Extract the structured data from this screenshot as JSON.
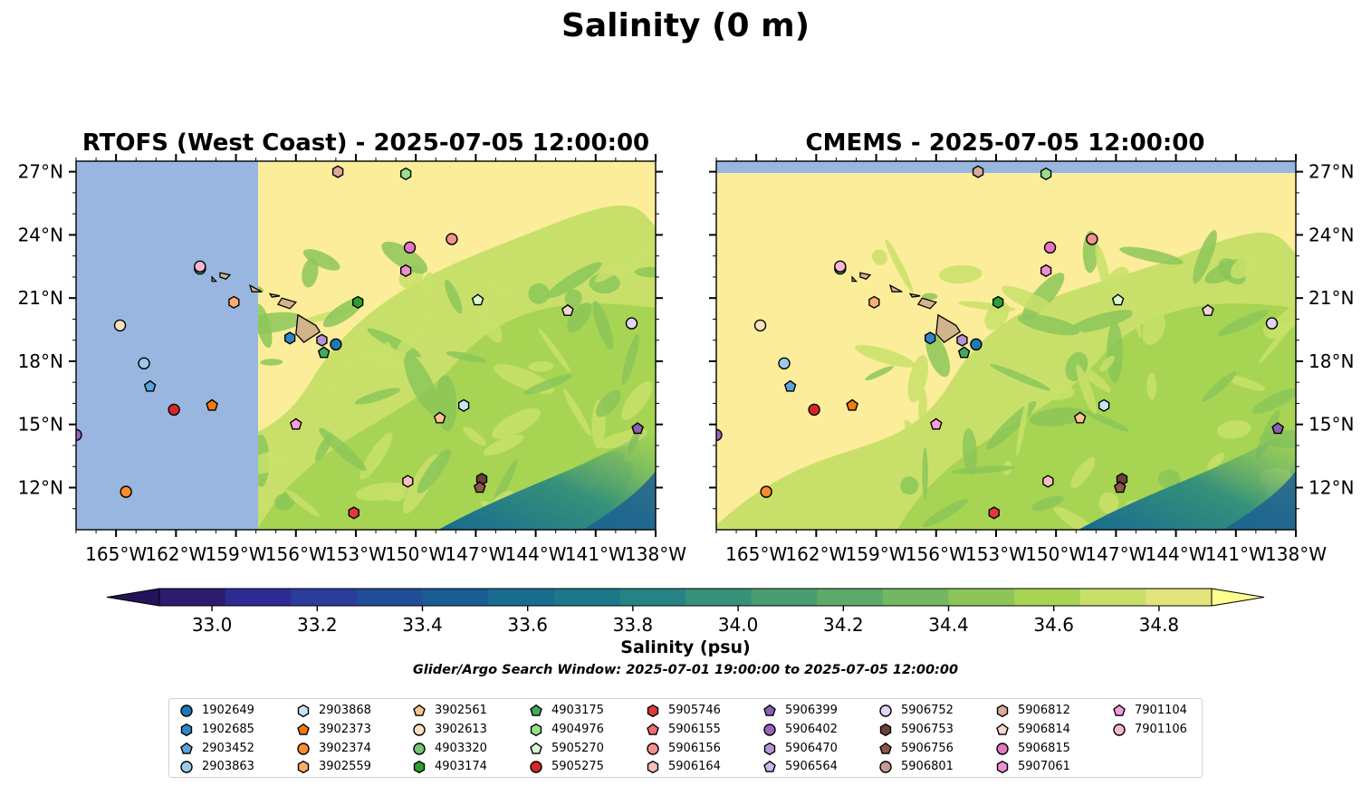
{
  "title": "Salinity (0 m)",
  "panels": [
    {
      "title": "RTOFS (West Coast) - 2025-07-05 12:00:00"
    },
    {
      "title": "CMEMS - 2025-07-05 12:00:00"
    }
  ],
  "colorbar": {
    "label": "Salinity (psu)",
    "range": [
      32.9,
      34.9
    ],
    "ticks": [
      "33.0",
      "33.2",
      "33.4",
      "33.6",
      "33.8",
      "34.0",
      "34.2",
      "34.4",
      "34.6",
      "34.8"
    ],
    "colors": [
      "#2c1b6e",
      "#2e2a93",
      "#2a3c9c",
      "#214c99",
      "#1a5d95",
      "#176b8f",
      "#1b7889",
      "#258483",
      "#36917a",
      "#4a9d71",
      "#5caa68",
      "#73b860",
      "#8cc659",
      "#a7d453",
      "#c8e06a",
      "#e4e47c"
    ],
    "extend": "both"
  },
  "subtitle": "Glider/Argo Search Window: 2025-07-01 19:00:00 to 2025-07-05 12:00:00",
  "map_data": {
    "lon_range": [
      -167,
      -138
    ],
    "lat_range": [
      10,
      27.5
    ],
    "lon_ticks": [
      "165°W",
      "162°W",
      "159°W",
      "156°W",
      "153°W",
      "150°W",
      "147°W",
      "144°W",
      "141°W",
      "138°W"
    ],
    "lat_ticks": [
      "12°N",
      "15°N",
      "18°N",
      "21°N",
      "24°N",
      "27°N"
    ],
    "land_color": "#d2b48c",
    "ocean_fill_color": "#98b6e0",
    "background_color": "#fbed9a"
  },
  "legend": [
    {
      "id": "1902649",
      "color": "#1f77b4",
      "marker": "circle"
    },
    {
      "id": "1902685",
      "color": "#2e86c7",
      "marker": "hexagon"
    },
    {
      "id": "2903452",
      "color": "#5ba3dc",
      "marker": "pentagon"
    },
    {
      "id": "2903863",
      "color": "#9ecae9",
      "marker": "circle"
    },
    {
      "id": "2903868",
      "color": "#c6e4f6",
      "marker": "hexagon"
    },
    {
      "id": "3902373",
      "color": "#f07a10",
      "marker": "pentagon"
    },
    {
      "id": "3902374",
      "color": "#fd8d2c",
      "marker": "circle"
    },
    {
      "id": "3902559",
      "color": "#fdae6b",
      "marker": "hexagon"
    },
    {
      "id": "3902561",
      "color": "#fdc48f",
      "marker": "pentagon"
    },
    {
      "id": "3902613",
      "color": "#fde0bd",
      "marker": "circle"
    },
    {
      "id": "4903320",
      "color": "#74c476",
      "marker": "circle"
    },
    {
      "id": "4903174",
      "color": "#2ca02c",
      "marker": "hexagon"
    },
    {
      "id": "4903175",
      "color": "#41ab5d",
      "marker": "pentagon"
    },
    {
      "id": "4904976",
      "color": "#98df8a",
      "marker": "hexagon"
    },
    {
      "id": "5905270",
      "color": "#d9f7d0",
      "marker": "pentagon"
    },
    {
      "id": "5905275",
      "color": "#d62728",
      "marker": "circle"
    },
    {
      "id": "5905746",
      "color": "#e03a3a",
      "marker": "hexagon"
    },
    {
      "id": "5906155",
      "color": "#ef6f6f",
      "marker": "pentagon"
    },
    {
      "id": "5906156",
      "color": "#f4918f",
      "marker": "circle"
    },
    {
      "id": "5906164",
      "color": "#fbc0bd",
      "marker": "hexagon"
    },
    {
      "id": "5906399",
      "color": "#8c5fb0",
      "marker": "pentagon"
    },
    {
      "id": "5906402",
      "color": "#9467bd",
      "marker": "circle"
    },
    {
      "id": "5906470",
      "color": "#b494d6",
      "marker": "hexagon"
    },
    {
      "id": "5906564",
      "color": "#cbb6e8",
      "marker": "pentagon"
    },
    {
      "id": "5906752",
      "color": "#e4d4f4",
      "marker": "circle"
    },
    {
      "id": "5906753",
      "color": "#6b4038",
      "marker": "hexagon"
    },
    {
      "id": "5906756",
      "color": "#8c564b",
      "marker": "pentagon"
    },
    {
      "id": "5906801",
      "color": "#c49c94",
      "marker": "circle"
    },
    {
      "id": "5906812",
      "color": "#d8aa9c",
      "marker": "hexagon"
    },
    {
      "id": "5906814",
      "color": "#f2d8cc",
      "marker": "pentagon"
    },
    {
      "id": "5906815",
      "color": "#e377c2",
      "marker": "circle"
    },
    {
      "id": "5907061",
      "color": "#ec8fd0",
      "marker": "hexagon"
    },
    {
      "id": "7901104",
      "color": "#f39edb",
      "marker": "pentagon"
    },
    {
      "id": "7901106",
      "color": "#f7b6d2",
      "marker": "circle"
    }
  ],
  "points": [
    {
      "lon": -167.0,
      "lat": 14.5,
      "color": "#9467bd",
      "marker": "circle"
    },
    {
      "lon": -164.8,
      "lat": 19.7,
      "color": "#fde0bd",
      "marker": "circle"
    },
    {
      "lon": -164.5,
      "lat": 11.8,
      "color": "#fd8d2c",
      "marker": "circle"
    },
    {
      "lon": -163.6,
      "lat": 17.9,
      "color": "#9ecae9",
      "marker": "circle"
    },
    {
      "lon": -163.3,
      "lat": 16.8,
      "color": "#5ba3dc",
      "marker": "pentagon"
    },
    {
      "lon": -162.1,
      "lat": 15.7,
      "color": "#d62728",
      "marker": "circle"
    },
    {
      "lon": -160.8,
      "lat": 22.4,
      "color": "#74c476",
      "marker": "circle"
    },
    {
      "lon": -160.8,
      "lat": 22.5,
      "color": "#f7b6d2",
      "marker": "circle"
    },
    {
      "lon": -160.2,
      "lat": 15.9,
      "color": "#f07a10",
      "marker": "pentagon"
    },
    {
      "lon": -159.1,
      "lat": 20.8,
      "color": "#fdae6b",
      "marker": "hexagon"
    },
    {
      "lon": -156.0,
      "lat": 15.0,
      "color": "#f39edb",
      "marker": "pentagon"
    },
    {
      "lon": -156.3,
      "lat": 19.1,
      "color": "#2e86c7",
      "marker": "hexagon"
    },
    {
      "lon": -154.7,
      "lat": 19.0,
      "color": "#b494d6",
      "marker": "hexagon"
    },
    {
      "lon": -154.6,
      "lat": 18.4,
      "color": "#41ab5d",
      "marker": "pentagon"
    },
    {
      "lon": -154.0,
      "lat": 18.8,
      "color": "#1f77b4",
      "marker": "circle"
    },
    {
      "lon": -153.9,
      "lat": 27.0,
      "color": "#d8aa9c",
      "marker": "hexagon"
    },
    {
      "lon": -152.9,
      "lat": 20.8,
      "color": "#2ca02c",
      "marker": "hexagon"
    },
    {
      "lon": -153.1,
      "lat": 10.8,
      "color": "#e03a3a",
      "marker": "hexagon"
    },
    {
      "lon": -150.5,
      "lat": 26.9,
      "color": "#98df8a",
      "marker": "hexagon"
    },
    {
      "lon": -150.5,
      "lat": 22.3,
      "color": "#ec8fd0",
      "marker": "hexagon"
    },
    {
      "lon": -150.3,
      "lat": 23.4,
      "color": "#e377c2",
      "marker": "circle"
    },
    {
      "lon": -150.4,
      "lat": 12.3,
      "color": "#fbc0bd",
      "marker": "hexagon"
    },
    {
      "lon": -148.8,
      "lat": 15.3,
      "color": "#fdc48f",
      "marker": "pentagon"
    },
    {
      "lon": -148.2,
      "lat": 23.8,
      "color": "#f4918f",
      "marker": "circle"
    },
    {
      "lon": -147.6,
      "lat": 15.9,
      "color": "#c6e4f6",
      "marker": "hexagon"
    },
    {
      "lon": -146.9,
      "lat": 20.9,
      "color": "#d9f7d0",
      "marker": "pentagon"
    },
    {
      "lon": -146.7,
      "lat": 12.4,
      "color": "#6b4038",
      "marker": "hexagon"
    },
    {
      "lon": -146.8,
      "lat": 12.0,
      "color": "#8c564b",
      "marker": "pentagon"
    },
    {
      "lon": -142.4,
      "lat": 20.4,
      "color": "#f2d8cc",
      "marker": "pentagon"
    },
    {
      "lon": -139.2,
      "lat": 19.8,
      "color": "#e4d4f4",
      "marker": "circle"
    },
    {
      "lon": -138.9,
      "lat": 14.8,
      "color": "#8c5fb0",
      "marker": "pentagon"
    }
  ]
}
